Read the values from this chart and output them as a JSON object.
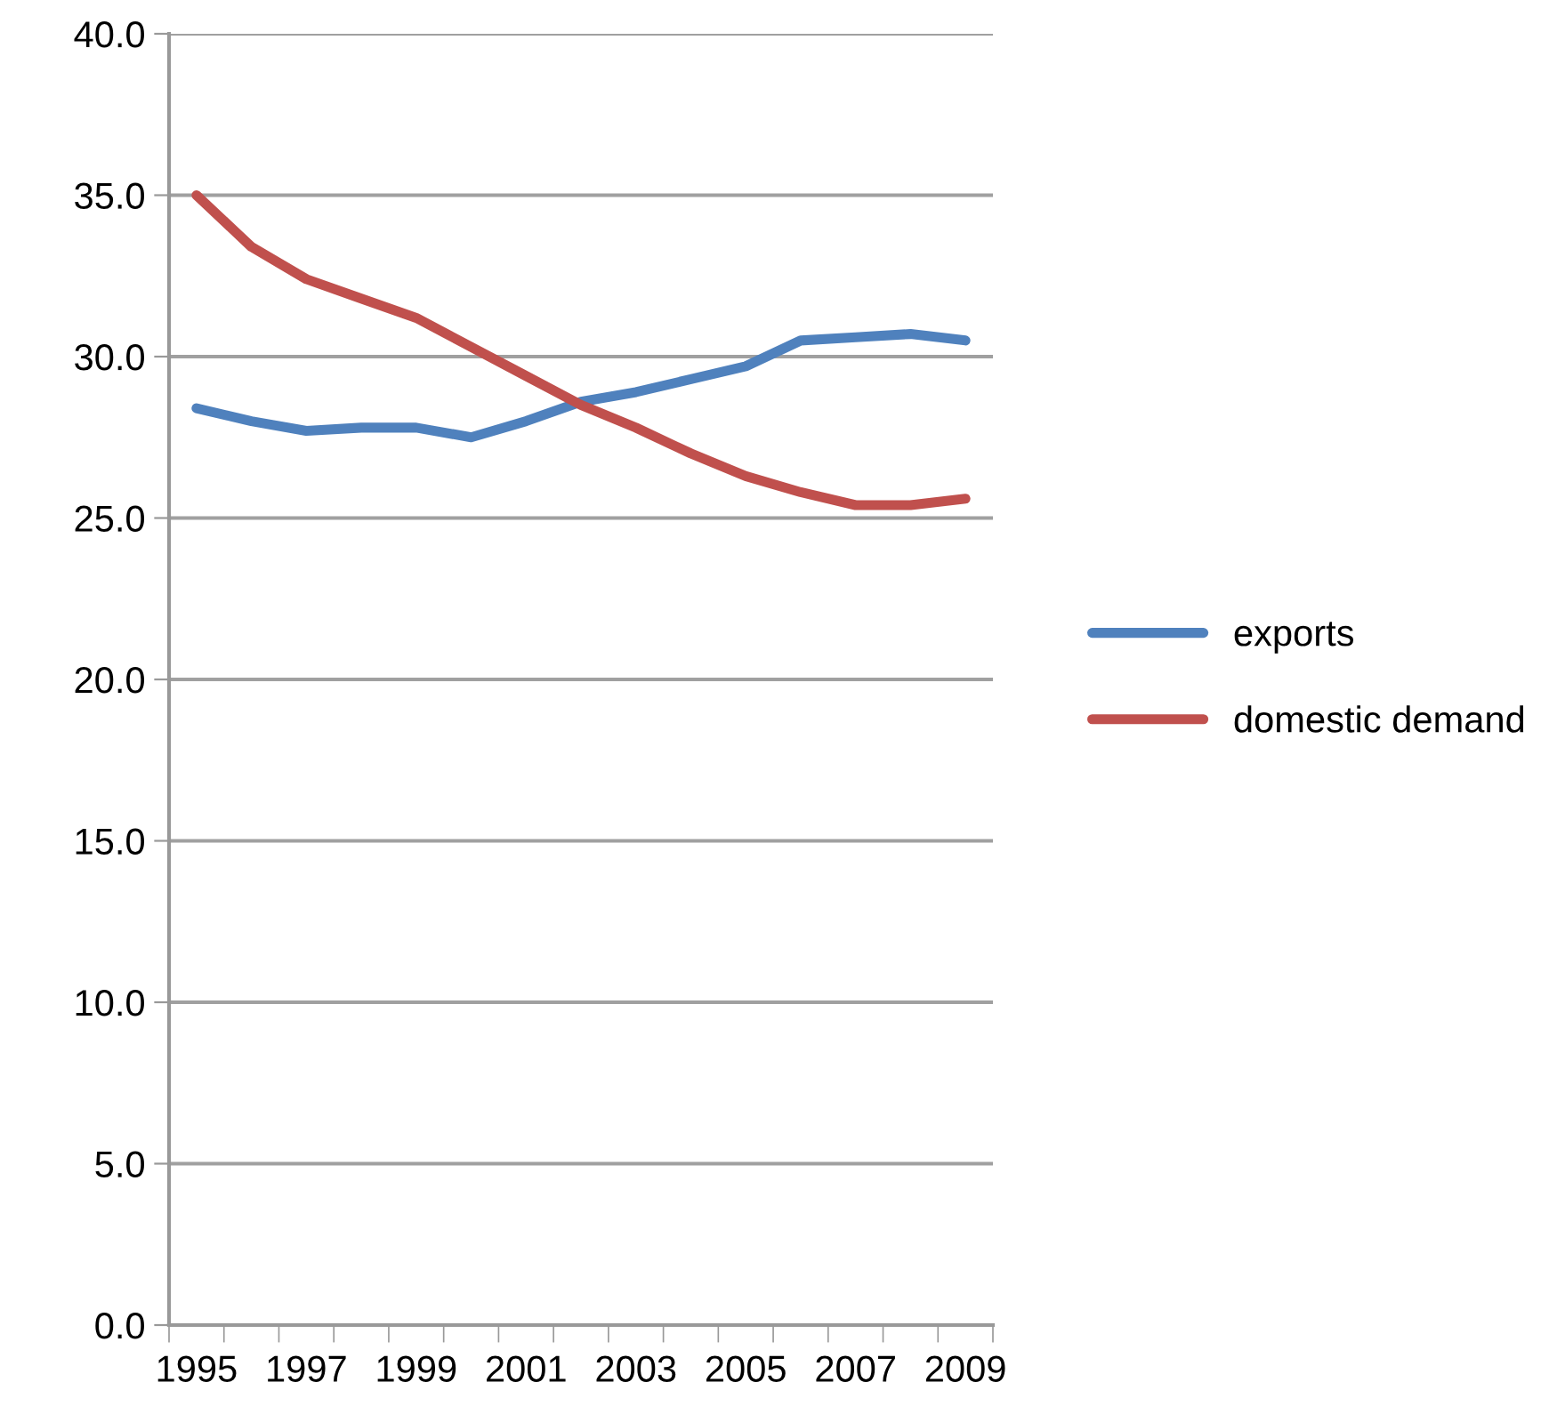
{
  "chart_data": {
    "type": "line",
    "categories": [
      "1995",
      null,
      "1997",
      null,
      "1999",
      null,
      "2001",
      null,
      "2003",
      null,
      "2005",
      null,
      "2007",
      null,
      "2009"
    ],
    "series": [
      {
        "name": "exports",
        "color": "#4f81bd",
        "values": [
          28.4,
          28.0,
          27.7,
          27.8,
          27.8,
          27.5,
          28.0,
          28.6,
          28.9,
          29.3,
          29.7,
          30.5,
          30.6,
          30.7,
          30.5
        ]
      },
      {
        "name": "domestic demand",
        "color": "#c0504d",
        "values": [
          35.0,
          33.4,
          32.4,
          31.8,
          31.2,
          30.3,
          29.4,
          28.5,
          27.8,
          27.0,
          26.3,
          25.8,
          25.4,
          25.4,
          25.6
        ]
      }
    ],
    "ylim": [
      0,
      40
    ],
    "yticks": [
      {
        "value": 0,
        "label": "0.0"
      },
      {
        "value": 5,
        "label": "5.0"
      },
      {
        "value": 10,
        "label": "10.0"
      },
      {
        "value": 15,
        "label": "15.0"
      },
      {
        "value": 20,
        "label": "20.0"
      },
      {
        "value": 25,
        "label": "25.0"
      },
      {
        "value": 30,
        "label": "30.0"
      },
      {
        "value": 35,
        "label": "35.0"
      },
      {
        "value": 40,
        "label": "40.0"
      }
    ],
    "grid": "y",
    "legend": "right",
    "marker": "none",
    "line_style": "solid"
  }
}
